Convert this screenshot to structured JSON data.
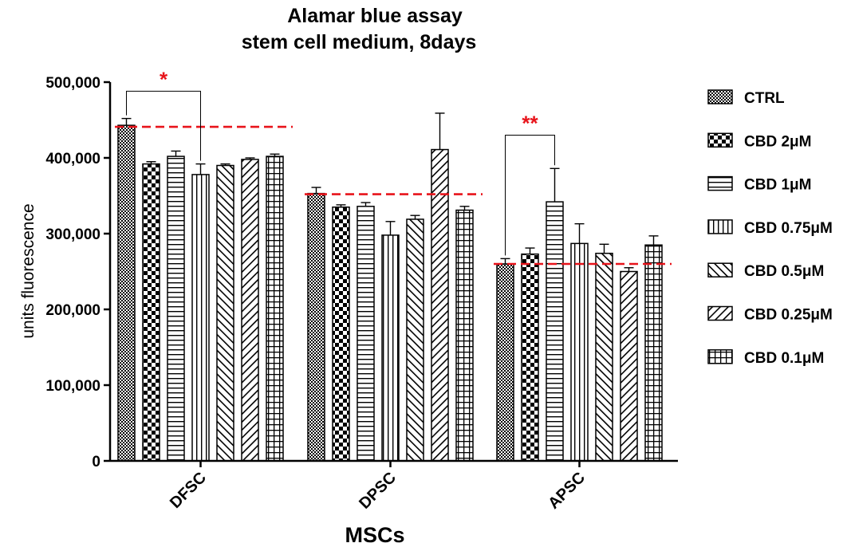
{
  "chart_data": {
    "type": "bar",
    "title": [
      "Alamar blue assay",
      "stem cell medium, 8days"
    ],
    "xlabel": "MSCs",
    "ylabel": "units fluorescence",
    "ylim": [
      0,
      500000
    ],
    "yticks": [
      0,
      100000,
      200000,
      300000,
      400000,
      500000
    ],
    "ytick_labels": [
      "0",
      "100,000",
      "200,000",
      "300,000",
      "400,000",
      "500,000"
    ],
    "categories": [
      "DFSC",
      "DPSC",
      "APSC"
    ],
    "legend_position": "right",
    "series": [
      {
        "name": "CTRL",
        "pattern": "dots",
        "values": [
          443000,
          353000,
          260000
        ],
        "errors": [
          9000,
          8000,
          7000
        ]
      },
      {
        "name": "CBD 2μM",
        "pattern": "checker",
        "values": [
          392000,
          335000,
          273000
        ],
        "errors": [
          3000,
          3000,
          8000
        ]
      },
      {
        "name": "CBD 1μM",
        "pattern": "horizontal",
        "values": [
          402000,
          336000,
          342000
        ],
        "errors": [
          7000,
          5000,
          44000
        ]
      },
      {
        "name": "CBD 0.75μM",
        "pattern": "vertical",
        "values": [
          378000,
          298000,
          287000
        ],
        "errors": [
          14000,
          18000,
          26000
        ]
      },
      {
        "name": "CBD 0.5μM",
        "pattern": "diag-up",
        "values": [
          390000,
          319000,
          274000
        ],
        "errors": [
          2000,
          5000,
          12000
        ]
      },
      {
        "name": "CBD 0.25μM",
        "pattern": "diag-down",
        "values": [
          398000,
          411000,
          250000
        ],
        "errors": [
          2000,
          48000,
          5000
        ]
      },
      {
        "name": "CBD 0.1μM",
        "pattern": "grid",
        "values": [
          402000,
          331000,
          285000
        ],
        "errors": [
          3000,
          5000,
          12000
        ]
      }
    ],
    "reference_lines": [
      {
        "category": "DFSC",
        "value": 441000,
        "color": "#e8141b"
      },
      {
        "category": "DPSC",
        "value": 352000,
        "color": "#e8141b"
      },
      {
        "category": "APSC",
        "value": 260000,
        "color": "#e8141b"
      }
    ],
    "annotations": [
      {
        "label": "*",
        "category": "DFSC",
        "from_series": 0,
        "to_series": 3,
        "y": 488000,
        "color": "#e8141b"
      },
      {
        "label": "**",
        "category": "APSC",
        "from_series": 0,
        "to_series": 2,
        "y": 430000,
        "color": "#e8141b"
      }
    ]
  }
}
